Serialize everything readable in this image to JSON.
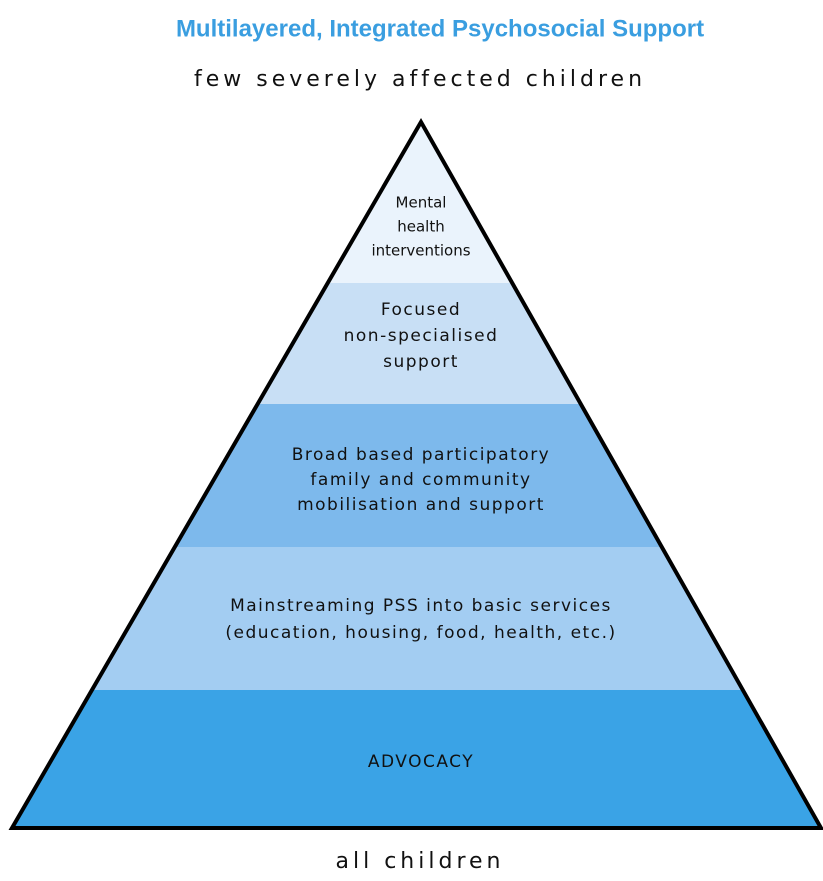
{
  "header": {
    "title": "Multilayered, Integrated Psychosocial Support",
    "top_label": "few severely affected children",
    "bottom_label": "all children"
  },
  "layers": [
    {
      "lines": [
        "Mental",
        "health",
        "interventions"
      ]
    },
    {
      "lines": [
        "Focused",
        "non-specialised",
        "support"
      ]
    },
    {
      "lines": [
        "Broad based participatory",
        "family and community",
        "mobilisation and support"
      ]
    },
    {
      "lines": [
        "Mainstreaming PSS into basic services",
        "(education, housing, food, health, etc.)"
      ]
    },
    {
      "lines": [
        "ADVOCACY"
      ]
    }
  ]
}
